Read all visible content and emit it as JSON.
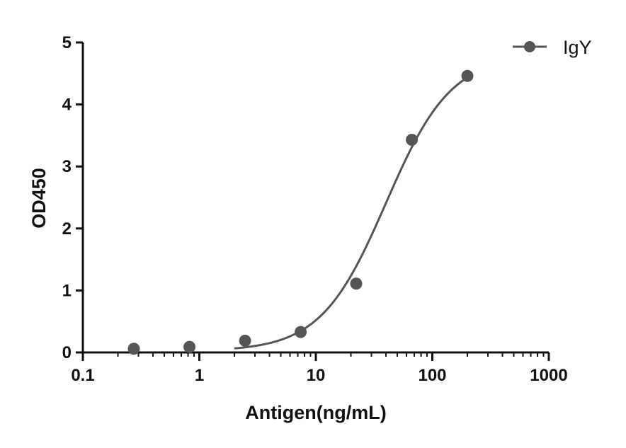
{
  "chart_data": {
    "type": "scatter",
    "title": "",
    "xlabel": "Antigen(ng/mL)",
    "ylabel": "OD450",
    "xscale": "log",
    "xlim": [
      0.1,
      1000
    ],
    "ylim": [
      0,
      5
    ],
    "xticks": [
      0.1,
      1,
      10,
      100,
      1000
    ],
    "xtick_labels": [
      "0.1",
      "1",
      "10",
      "100",
      "1000"
    ],
    "yticks": [
      0,
      1,
      2,
      3,
      4,
      5
    ],
    "ytick_labels": [
      "0",
      "1",
      "2",
      "3",
      "4",
      "5"
    ],
    "grid": false,
    "legend_position": "top-right",
    "colors": {
      "series": "#555555",
      "axis": "#111111"
    },
    "series": [
      {
        "name": "IgY",
        "x": [
          0.274,
          0.823,
          2.47,
          7.41,
          22.2,
          66.7,
          200
        ],
        "y": [
          0.06,
          0.09,
          0.19,
          0.33,
          1.11,
          3.43,
          4.46
        ],
        "fit": {
          "model": "4PL",
          "bottom": 0.02,
          "top": 4.8,
          "ec50": 40,
          "hill": 1.55,
          "x_range": [
            2,
            200
          ]
        }
      }
    ]
  }
}
